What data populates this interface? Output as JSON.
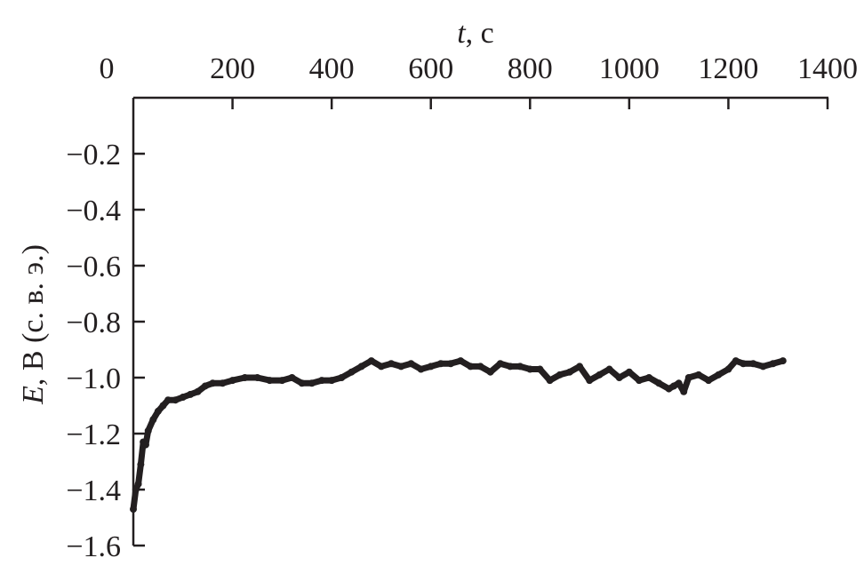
{
  "chart_data": {
    "type": "line",
    "xlabel": "t, с",
    "xlabel_italic_part": "t",
    "xlabel_rest": ", с",
    "ylabel": "E, В (с. в. э.)",
    "ylabel_italic_part": "E",
    "ylabel_rest": ", В (с. в. э.)",
    "xlim": [
      0,
      1400
    ],
    "ylim": [
      -1.6,
      0
    ],
    "x_axis_position": "top",
    "x_ticks": [
      0,
      200,
      400,
      600,
      800,
      1000,
      1200,
      1400
    ],
    "x_tick_labels": [
      "0",
      "200",
      "400",
      "600",
      "800",
      "1000",
      "1200",
      "1400"
    ],
    "y_ticks": [
      -0.2,
      -0.4,
      -0.6,
      -0.8,
      -1.0,
      -1.2,
      -1.4,
      -1.6
    ],
    "y_tick_labels": [
      "−0.2",
      "−0.4",
      "−0.6",
      "−0.8",
      "−1.0",
      "−1.2",
      "−1.4",
      "−1.6"
    ],
    "grid": false,
    "line_color": "#231f20",
    "x": [
      0,
      5,
      10,
      15,
      20,
      25,
      30,
      40,
      50,
      60,
      70,
      85,
      100,
      115,
      130,
      145,
      160,
      180,
      200,
      225,
      250,
      275,
      300,
      320,
      340,
      360,
      380,
      400,
      420,
      440,
      460,
      480,
      500,
      520,
      540,
      560,
      580,
      600,
      620,
      640,
      660,
      680,
      700,
      720,
      740,
      760,
      780,
      800,
      820,
      840,
      860,
      880,
      900,
      920,
      940,
      960,
      980,
      1000,
      1020,
      1040,
      1060,
      1080,
      1090,
      1100,
      1110,
      1120,
      1140,
      1160,
      1180,
      1200,
      1215,
      1230,
      1250,
      1270,
      1290,
      1310
    ],
    "y": [
      -1.47,
      -1.4,
      -1.38,
      -1.31,
      -1.23,
      -1.24,
      -1.19,
      -1.15,
      -1.12,
      -1.1,
      -1.08,
      -1.08,
      -1.07,
      -1.06,
      -1.05,
      -1.03,
      -1.02,
      -1.02,
      -1.01,
      -1.0,
      -1.0,
      -1.01,
      -1.01,
      -1.0,
      -1.02,
      -1.02,
      -1.01,
      -1.01,
      -1.0,
      -0.98,
      -0.96,
      -0.94,
      -0.96,
      -0.95,
      -0.96,
      -0.95,
      -0.97,
      -0.96,
      -0.95,
      -0.95,
      -0.94,
      -0.96,
      -0.96,
      -0.98,
      -0.95,
      -0.96,
      -0.96,
      -0.97,
      -0.97,
      -1.01,
      -0.99,
      -0.98,
      -0.96,
      -1.01,
      -0.99,
      -0.97,
      -1.0,
      -0.98,
      -1.01,
      -1.0,
      -1.02,
      -1.04,
      -1.03,
      -1.02,
      -1.05,
      -1.0,
      -0.99,
      -1.01,
      -0.99,
      -0.97,
      -0.94,
      -0.95,
      -0.95,
      -0.96,
      -0.95,
      -0.94
    ]
  }
}
